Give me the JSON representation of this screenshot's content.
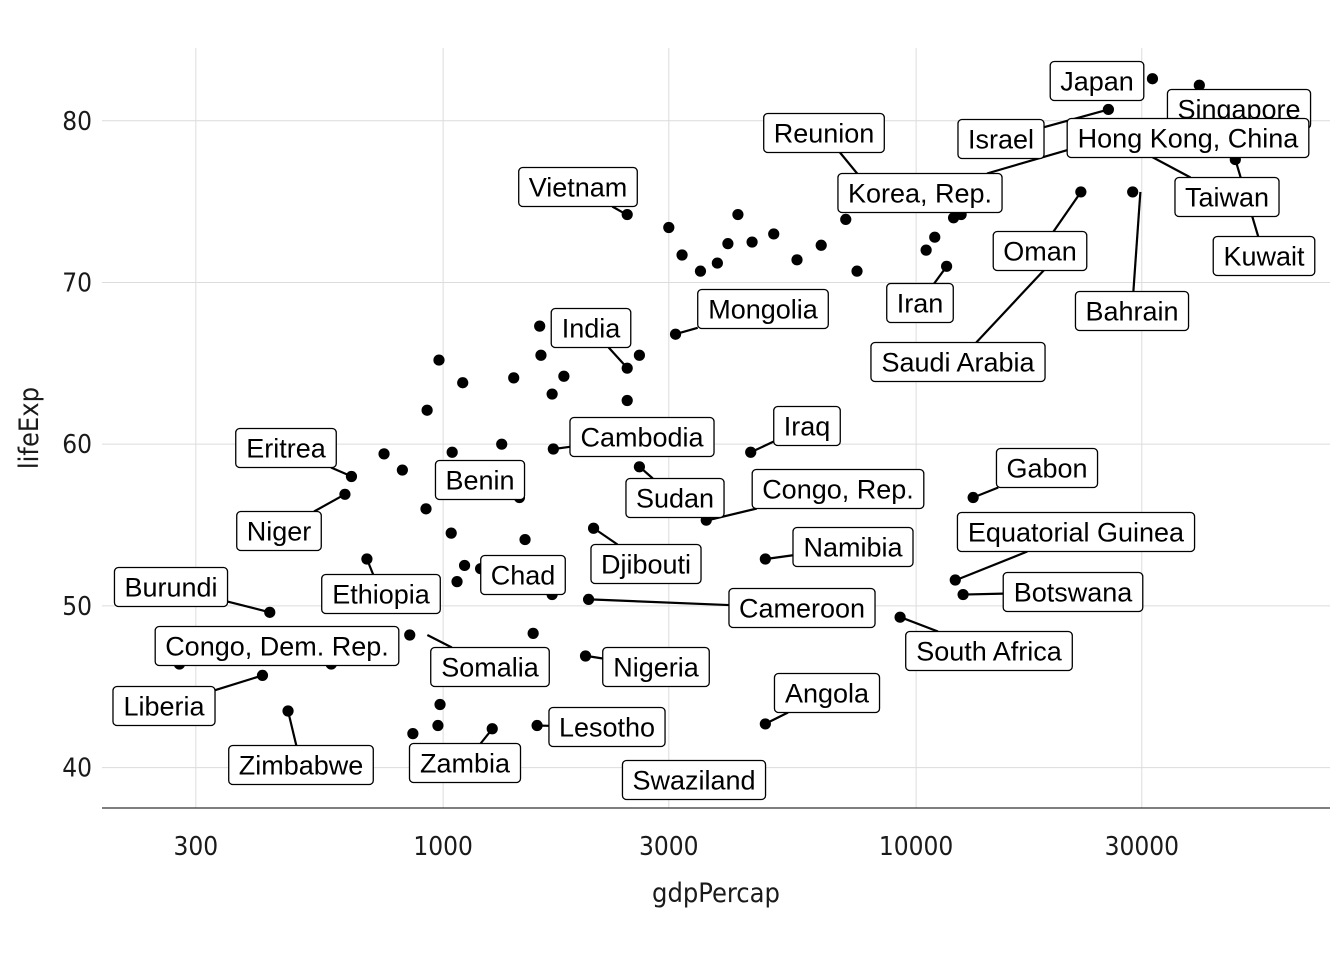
{
  "chart_data": {
    "type": "scatter",
    "xlabel": "gdpPercap",
    "ylabel": "lifeExp",
    "x_scale": "log10",
    "xlim": [
      190,
      75000
    ],
    "ylim": [
      37.5,
      84.5
    ],
    "x_ticks": [
      300,
      1000,
      3000,
      10000,
      30000
    ],
    "x_tick_labels": [
      "300",
      "1000",
      "3000",
      "10000",
      "30000"
    ],
    "y_ticks": [
      40,
      50,
      60,
      70,
      80
    ],
    "y_tick_labels": [
      "40",
      "50",
      "60",
      "70",
      "80"
    ],
    "grid": true,
    "legend": "none",
    "points": [
      {
        "x": 277,
        "y": 46.4
      },
      {
        "x": 430,
        "y": 49.6
      },
      {
        "x": 415,
        "y": 45.7
      },
      {
        "x": 470,
        "y": 43.5
      },
      {
        "x": 580,
        "y": 46.4
      },
      {
        "x": 620,
        "y": 56.9
      },
      {
        "x": 640,
        "y": 58.0
      },
      {
        "x": 690,
        "y": 52.9
      },
      {
        "x": 706,
        "y": 46.9
      },
      {
        "x": 750,
        "y": 59.4
      },
      {
        "x": 820,
        "y": 58.4
      },
      {
        "x": 850,
        "y": 48.2
      },
      {
        "x": 863,
        "y": 42.1
      },
      {
        "x": 925,
        "y": 62.1
      },
      {
        "x": 920,
        "y": 56.0
      },
      {
        "x": 980,
        "y": 65.2
      },
      {
        "x": 970,
        "y": 46.2
      },
      {
        "x": 975,
        "y": 42.6
      },
      {
        "x": 985,
        "y": 43.9
      },
      {
        "x": 1040,
        "y": 54.5
      },
      {
        "x": 1045,
        "y": 59.5
      },
      {
        "x": 1070,
        "y": 51.5
      },
      {
        "x": 1100,
        "y": 63.8
      },
      {
        "x": 1110,
        "y": 52.5
      },
      {
        "x": 1200,
        "y": 52.3
      },
      {
        "x": 1270,
        "y": 42.4
      },
      {
        "x": 1330,
        "y": 60.0
      },
      {
        "x": 1410,
        "y": 64.1
      },
      {
        "x": 1450,
        "y": 56.7
      },
      {
        "x": 1490,
        "y": 54.1
      },
      {
        "x": 1550,
        "y": 48.3
      },
      {
        "x": 1580,
        "y": 42.6
      },
      {
        "x": 1600,
        "y": 67.3
      },
      {
        "x": 1610,
        "y": 65.5
      },
      {
        "x": 1700,
        "y": 63.1
      },
      {
        "x": 1710,
        "y": 59.7
      },
      {
        "x": 1700,
        "y": 50.7
      },
      {
        "x": 1800,
        "y": 64.2
      },
      {
        "x": 2000,
        "y": 46.9
      },
      {
        "x": 2030,
        "y": 50.4
      },
      {
        "x": 2080,
        "y": 54.8
      },
      {
        "x": 2450,
        "y": 62.7
      },
      {
        "x": 2450,
        "y": 64.7
      },
      {
        "x": 2450,
        "y": 74.2
      },
      {
        "x": 2600,
        "y": 65.5
      },
      {
        "x": 2600,
        "y": 58.6
      },
      {
        "x": 3000,
        "y": 73.4
      },
      {
        "x": 3100,
        "y": 66.8
      },
      {
        "x": 3200,
        "y": 71.7
      },
      {
        "x": 3500,
        "y": 70.7
      },
      {
        "x": 3600,
        "y": 55.3
      },
      {
        "x": 3800,
        "y": 71.2
      },
      {
        "x": 4000,
        "y": 72.4
      },
      {
        "x": 4200,
        "y": 74.2
      },
      {
        "x": 4500,
        "y": 72.5
      },
      {
        "x": 4470,
        "y": 59.5
      },
      {
        "x": 4800,
        "y": 52.9
      },
      {
        "x": 4800,
        "y": 42.7
      },
      {
        "x": 5000,
        "y": 73.0
      },
      {
        "x": 5600,
        "y": 71.4
      },
      {
        "x": 6300,
        "y": 72.3
      },
      {
        "x": 7100,
        "y": 73.9
      },
      {
        "x": 7500,
        "y": 70.7
      },
      {
        "x": 9250,
        "y": 49.3
      },
      {
        "x": 10500,
        "y": 72.0
      },
      {
        "x": 10950,
        "y": 72.8
      },
      {
        "x": 11600,
        "y": 71.0
      },
      {
        "x": 12000,
        "y": 74.0
      },
      {
        "x": 12450,
        "y": 74.2
      },
      {
        "x": 12100,
        "y": 51.6
      },
      {
        "x": 12570,
        "y": 50.7
      },
      {
        "x": 13200,
        "y": 56.7
      },
      {
        "x": 22300,
        "y": 75.6
      },
      {
        "x": 21700,
        "y": 72.8
      },
      {
        "x": 25500,
        "y": 80.7
      },
      {
        "x": 28700,
        "y": 75.6
      },
      {
        "x": 31600,
        "y": 82.6
      },
      {
        "x": 39700,
        "y": 82.2
      },
      {
        "x": 47300,
        "y": 77.6
      }
    ],
    "labels": [
      {
        "text": "Japan",
        "x": 31656,
        "y": 82.6
      },
      {
        "text": "Singapore",
        "x": 47143,
        "y": 80.8
      },
      {
        "text": "Israel",
        "x": 25523,
        "y": 80.7
      },
      {
        "text": "Hong Kong, China",
        "x": 39725,
        "y": 82.2
      },
      {
        "text": "Reunion",
        "x": 7670,
        "y": 76.4
      },
      {
        "text": "Korea, Rep.",
        "x": 23348,
        "y": 78.6
      },
      {
        "text": "Taiwan",
        "x": 28718,
        "y": 78.4
      },
      {
        "text": "Kuwait",
        "x": 47307,
        "y": 77.6
      },
      {
        "text": "Oman",
        "x": 22316,
        "y": 75.6
      },
      {
        "text": "Vietnam",
        "x": 2441,
        "y": 74.2
      },
      {
        "text": "Iran",
        "x": 11606,
        "y": 71.0
      },
      {
        "text": "Bahrain",
        "x": 29796,
        "y": 75.6
      },
      {
        "text": "Mongolia",
        "x": 3096,
        "y": 66.8
      },
      {
        "text": "Saudi Arabia",
        "x": 21655,
        "y": 72.8
      },
      {
        "text": "India",
        "x": 2452,
        "y": 64.7
      },
      {
        "text": "Cambodia",
        "x": 1714,
        "y": 59.7
      },
      {
        "text": "Iraq",
        "x": 4471,
        "y": 59.5
      },
      {
        "text": "Eritrea",
        "x": 641,
        "y": 58.0
      },
      {
        "text": "Benin",
        "x": 1441,
        "y": 56.7
      },
      {
        "text": "Sudan",
        "x": 2602,
        "y": 58.6
      },
      {
        "text": "Congo, Rep.",
        "x": 3633,
        "y": 55.3
      },
      {
        "text": "Gabon",
        "x": 13206,
        "y": 56.7
      },
      {
        "text": "Niger",
        "x": 620,
        "y": 56.9
      },
      {
        "text": "Namibia",
        "x": 4811,
        "y": 52.9
      },
      {
        "text": "Equatorial Guinea",
        "x": 12154,
        "y": 51.6
      },
      {
        "text": "Djibouti",
        "x": 2082,
        "y": 54.8
      },
      {
        "text": "Burundi",
        "x": 430,
        "y": 49.6
      },
      {
        "text": "Chad",
        "x": 1704,
        "y": 50.7
      },
      {
        "text": "Botswana",
        "x": 12570,
        "y": 50.7
      },
      {
        "text": "Ethiopia",
        "x": 690,
        "y": 52.9
      },
      {
        "text": "Cameroon",
        "x": 2042,
        "y": 50.4
      },
      {
        "text": "South Africa",
        "x": 9270,
        "y": 49.3
      },
      {
        "text": "Congo, Dem. Rep.",
        "x": 278,
        "y": 46.5
      },
      {
        "text": "Somalia",
        "x": 926,
        "y": 48.2
      },
      {
        "text": "Nigeria",
        "x": 2014,
        "y": 46.9
      },
      {
        "text": "Liberia",
        "x": 415,
        "y": 45.7
      },
      {
        "text": "Angola",
        "x": 4797,
        "y": 42.7
      },
      {
        "text": "Lesotho",
        "x": 1569,
        "y": 42.6
      },
      {
        "text": "Zimbabwe",
        "x": 470,
        "y": 43.5
      },
      {
        "text": "Zambia",
        "x": 1271,
        "y": 42.4
      },
      {
        "text": "Swaziland",
        "x": 4513,
        "y": 39.6
      }
    ]
  }
}
